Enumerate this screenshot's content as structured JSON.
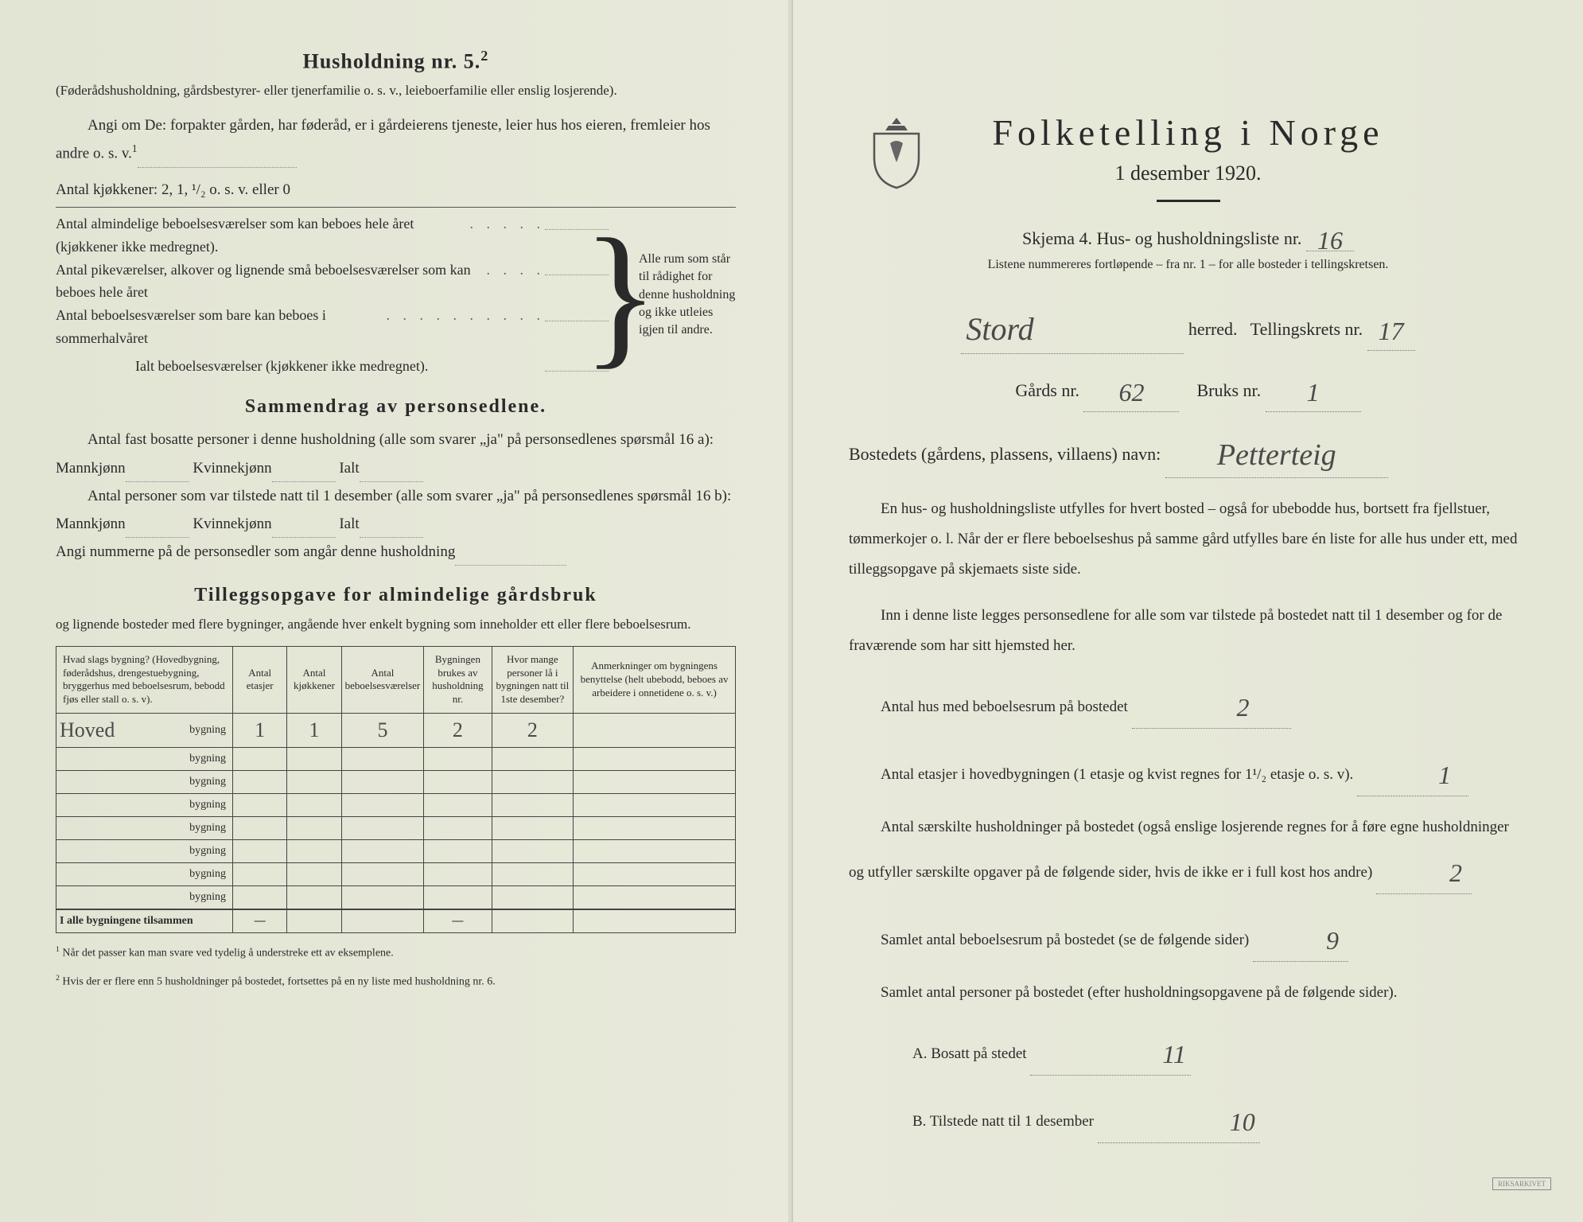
{
  "left": {
    "h2": "Husholdning nr. 5.",
    "h2_sup": "2",
    "sub1": "(Føderådshusholdning, gårdsbestyrer- eller tjenerfamilie o. s. v., leieboerfamilie eller enslig losjerende).",
    "sub2": "Angi om De:  forpakter gården, har føderåd, er i gårdeierens tjeneste, leier hus hos eieren, fremleier hos andre o. s. v.",
    "sub2_sup": "1",
    "kitchens": "Antal kjøkkener: 2, 1, ¹/₂ o. s. v. eller 0",
    "brace_rows": [
      "Antal almindelige beboelsesværelser som kan beboes hele året (kjøkkener ikke medregnet).",
      "Antal pikeværelser, alkover og lignende små beboelsesværelser som kan beboes hele året",
      "Antal beboelsesværelser som bare kan beboes i sommerhalvåret"
    ],
    "brace_total": "Ialt beboelsesværelser  (kjøkkener ikke medregnet).",
    "brace_side": "Alle rum som står til rådighet for denne husholdning og ikke utleies igjen til andre.",
    "h3a": "Sammendrag av personsedlene.",
    "sam1a": "Antal fast bosatte personer i denne husholdning (alle som svarer „ja\" på personsedlenes spørsmål 16 a): Mannkjønn",
    "sam1b": "Kvinnekjønn",
    "sam1c": "Ialt",
    "sam2a": "Antal personer som var tilstede natt til 1 desember (alle som svarer „ja\" på personsedlenes spørsmål 16 b): Mannkjønn",
    "sam2b": "Kvinnekjønn",
    "sam2c": "Ialt",
    "sam3": "Angi nummerne på de personsedler som angår denne husholdning",
    "h3b": "Tilleggsopgave for almindelige gårdsbruk",
    "tillegg_sub": "og lignende bosteder med flere bygninger, angående hver enkelt bygning som inneholder ett eller flere beboelsesrum.",
    "table": {
      "headers": [
        "Hvad slags bygning?\n(Hovedbygning, føderådshus, drengestuebygning, bryggerhus med beboelsesrum, bebodd fjøs eller stall o. s. v).",
        "Antal etasjer",
        "Antal kjøkkener",
        "Antal beboelsesværelser",
        "Bygningen brukes av husholdning nr.",
        "Hvor mange personer lå i bygningen natt til 1ste desember?",
        "Anmerkninger om bygningens benyttelse (helt ubebodd, beboes av arbeidere i onnetidene o. s. v.)"
      ],
      "first_row_label": "Hoved",
      "bygning_word": "bygning",
      "first_row": [
        "1",
        "1",
        "5",
        "2",
        "2",
        ""
      ],
      "empty_rows": 7,
      "total_label": "I alle bygningene tilsammen",
      "dash": "—"
    },
    "footnote1": "Når det passer kan man svare ved tydelig å understreke ett av eksemplene.",
    "footnote2": "Hvis der er flere enn 5 husholdninger på bostedet, fortsettes på en ny liste med husholdning nr. 6."
  },
  "right": {
    "title": "Folketelling i Norge",
    "date": "1 desember 1920.",
    "skjema": "Skjema 4.  Hus- og husholdningsliste nr.",
    "skjema_nr": "16",
    "sub": "Listene nummereres fortløpende – fra nr. 1 – for alle bosteder i tellingskretsen.",
    "herred_val": "Stord",
    "herred_lbl": "herred.",
    "krets_lbl": "Tellingskrets nr.",
    "krets_val": "17",
    "gards_lbl": "Gårds nr.",
    "gards_val": "62",
    "bruks_lbl": "Bruks nr.",
    "bruks_val": "1",
    "bosted_lbl": "Bostedets (gårdens, plassens, villaens) navn:",
    "bosted_val": "Petterteig",
    "p1": "En hus- og husholdningsliste utfylles for hvert bosted – også for ubebodde hus, bortsett fra fjellstuer, tømmerkojer o. l.  Når der er flere beboelseshus på samme gård utfylles bare én liste for alle hus under ett, med tilleggsopgave på skjemaets siste side.",
    "p2": "Inn i denne liste legges personsedlene for alle som var tilstede på bostedet natt til 1 desember og for de fraværende som har sitt hjemsted her.",
    "q1_lbl": "Antal hus med beboelsesrum på bostedet",
    "q1_val": "2",
    "q2_lbl": "Antal etasjer i hovedbygningen (1 etasje og kvist regnes for 1¹/₂ etasje o. s. v).",
    "q2_val": "1",
    "q3_lbl": "Antal særskilte husholdninger på bostedet (også enslige losjerende regnes for å føre egne husholdninger og utfyller særskilte opgaver på de følgende sider, hvis de ikke er i full kost hos andre)",
    "q3_val": "2",
    "q4_lbl": "Samlet antal beboelsesrum på bostedet (se de følgende sider)",
    "q4_val": "9",
    "q5_lbl": "Samlet antal personer på bostedet (efter husholdningsopgavene på de følgende sider).",
    "qa_lbl": "A.  Bosatt på stedet",
    "qa_val": "11",
    "qb_lbl": "B.  Tilstede natt til 1 desember",
    "qb_val": "10",
    "stamp": "RIKSARKIVET"
  },
  "colors": {
    "text": "#2a2a2a",
    "handwriting": "#4a4a4a",
    "paper": "#e6e8d8"
  }
}
